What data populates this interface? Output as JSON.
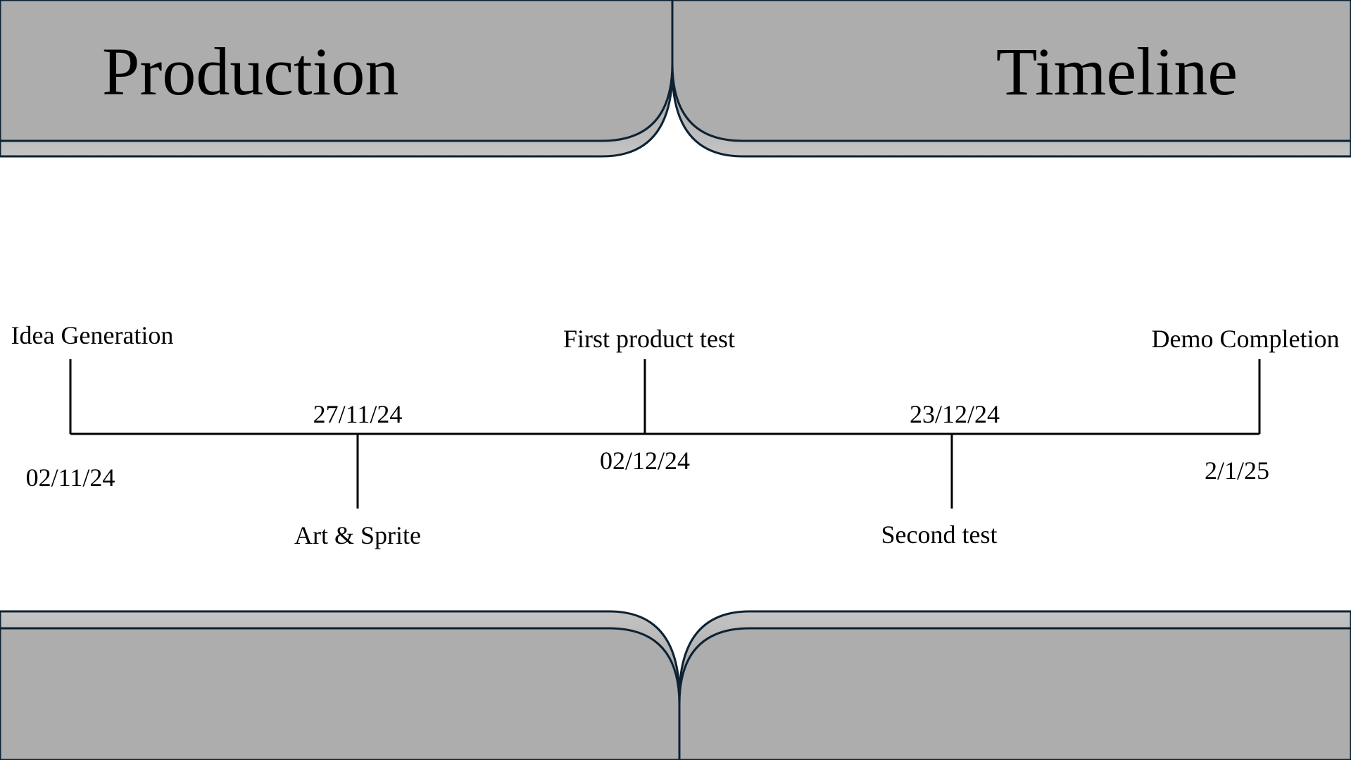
{
  "header": {
    "title_left": "Production",
    "title_right": "Timeline"
  },
  "colors": {
    "panel_fill": "#adadad",
    "panel_stroke": "#0d2233",
    "line": "#000000",
    "background": "#ffffff"
  },
  "timeline": {
    "milestones": [
      {
        "label": "Idea Generation",
        "date": "02/11/24"
      },
      {
        "label": "Art & Sprite",
        "date": "27/11/24"
      },
      {
        "label": "First product test",
        "date": "02/12/24"
      },
      {
        "label": "Second test",
        "date": "23/12/24"
      },
      {
        "label": "Demo Completion",
        "date": "2/1/25"
      }
    ]
  }
}
